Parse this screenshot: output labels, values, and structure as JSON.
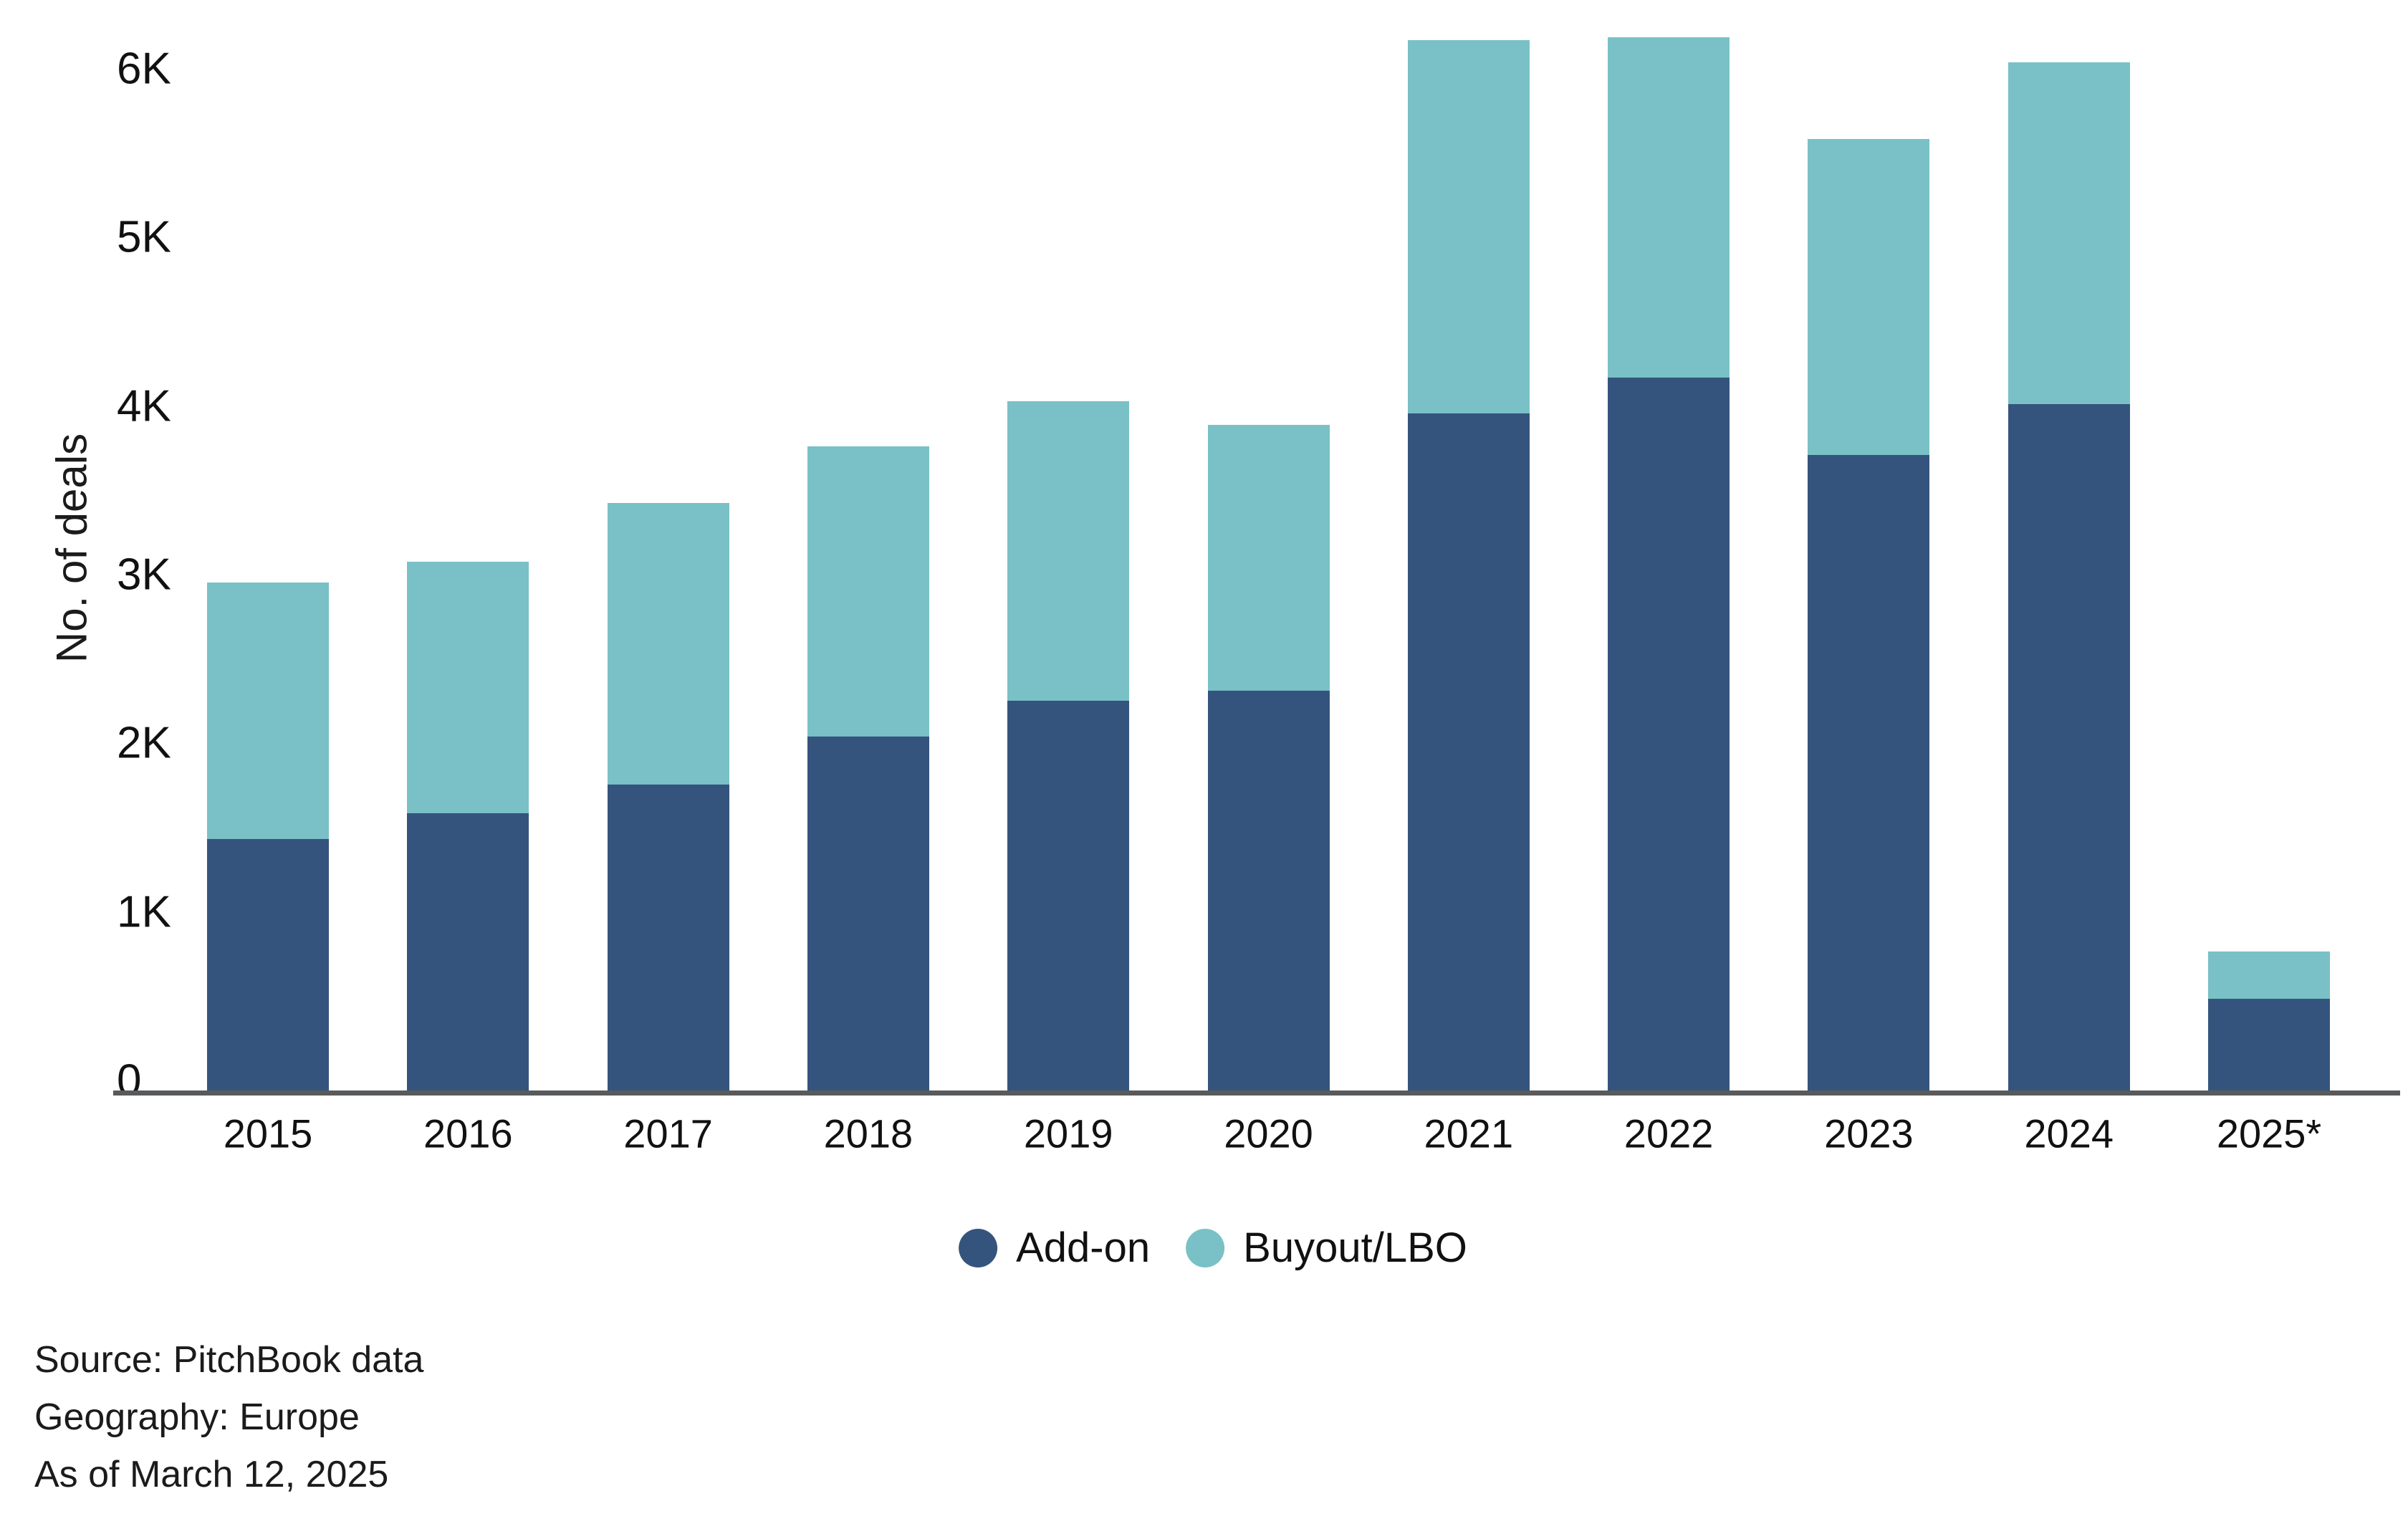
{
  "chart_data": {
    "type": "bar",
    "stacked": true,
    "title": "",
    "categories": [
      "2015",
      "2016",
      "2017",
      "2018",
      "2019",
      "2020",
      "2021",
      "2022",
      "2023",
      "2024",
      "2025*"
    ],
    "series": [
      {
        "name": "Add-on",
        "color": "#35547d",
        "values": [
          1490,
          1645,
          1815,
          2100,
          2310,
          2370,
          4015,
          4230,
          3770,
          4070,
          545
        ]
      },
      {
        "name": "Buyout/LBO",
        "color": "#79c1c6",
        "values": [
          1520,
          1490,
          1670,
          1720,
          1775,
          1575,
          2215,
          2020,
          1875,
          2025,
          280
        ]
      }
    ],
    "totals": [
      3010,
      3135,
      3485,
      3820,
      4085,
      3945,
      6230,
      6250,
      5645,
      6095,
      825
    ],
    "xlabel": "",
    "ylabel": "No. of deals",
    "y_ticks": [
      "0",
      "1K",
      "2K",
      "3K",
      "4K",
      "5K",
      "6K"
    ],
    "ylim": [
      0,
      6450
    ],
    "grid": false,
    "legend_position": "bottom",
    "axis_line_color": "#595a5c"
  },
  "footer": {
    "source": "Source: PitchBook data",
    "geography": "Geography: Europe",
    "as_of": "As of March 12, 2025"
  }
}
